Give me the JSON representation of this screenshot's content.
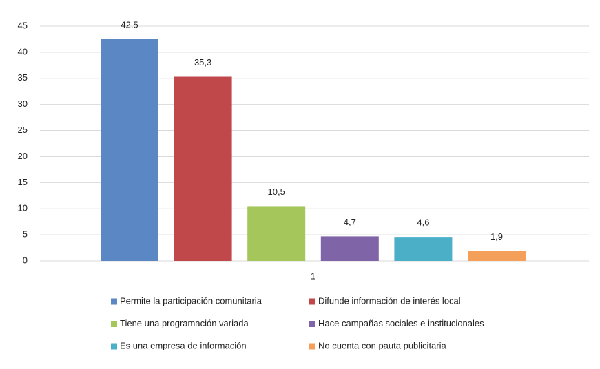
{
  "chart_data": {
    "type": "bar",
    "categories": [
      "1"
    ],
    "series": [
      {
        "name": "Permite la participación comunitaria",
        "color": "#5b87c5",
        "values": [
          42.5
        ],
        "value_labels": [
          "42,5"
        ]
      },
      {
        "name": "Difunde información de interés local",
        "color": "#c0484a",
        "values": [
          35.3
        ],
        "value_labels": [
          "35,3"
        ]
      },
      {
        "name": "Tiene una programación variada",
        "color": "#a5c65a",
        "values": [
          10.5
        ],
        "value_labels": [
          "10,5"
        ]
      },
      {
        "name": "Hace campañas sociales e institucionales",
        "color": "#8064a8",
        "values": [
          4.7
        ],
        "value_labels": [
          "4,7"
        ]
      },
      {
        "name": "Es una empresa de información",
        "color": "#4bafc8",
        "values": [
          4.6
        ],
        "value_labels": [
          "4,6"
        ]
      },
      {
        "name": "No cuenta con pauta publicitaria",
        "color": "#f5a05a",
        "values": [
          1.9
        ],
        "value_labels": [
          "1,9"
        ]
      }
    ],
    "ylim": [
      0,
      45
    ],
    "yticks": [
      0,
      5,
      10,
      15,
      20,
      25,
      30,
      35,
      40,
      45
    ],
    "grid": true,
    "legend": "bottom"
  }
}
